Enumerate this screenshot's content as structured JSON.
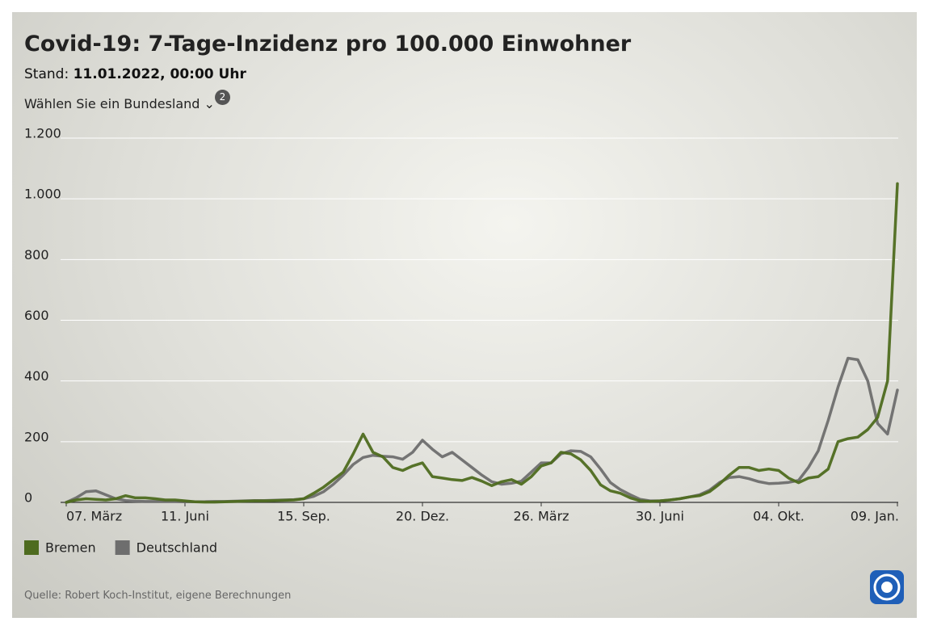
{
  "chart_data": {
    "type": "line",
    "title": "Covid-19: 7-Tage-Inzidenz pro 100.000 Einwohner",
    "subtitle_prefix": "Stand:",
    "subtitle_date": "11.01.2022, 00:00 Uhr",
    "selector": "Wählen Sie ein Bundesland",
    "selector_badge": "2",
    "source": "Quelle: Robert Koch-Institut, eigene Berechnungen",
    "categories": [
      "07. März",
      null,
      null,
      null,
      null,
      null,
      null,
      null,
      null,
      null,
      null,
      null,
      "11. Juni",
      null,
      null,
      null,
      null,
      null,
      null,
      null,
      null,
      null,
      null,
      null,
      "15. Sep.",
      null,
      null,
      null,
      null,
      null,
      null,
      null,
      null,
      null,
      null,
      null,
      "20. Dez.",
      null,
      null,
      null,
      null,
      null,
      null,
      null,
      null,
      null,
      null,
      null,
      "26. März",
      null,
      null,
      null,
      null,
      null,
      null,
      null,
      null,
      null,
      null,
      null,
      "30. Juni",
      null,
      null,
      null,
      null,
      null,
      null,
      null,
      null,
      null,
      null,
      null,
      "04. Okt.",
      null,
      null,
      null,
      null,
      null,
      null,
      null,
      null,
      null,
      null,
      null,
      "09. Jan."
    ],
    "series": [
      {
        "name": "Bremen",
        "color": "#4e6b1f",
        "values": [
          0,
          8,
          12,
          10,
          8,
          12,
          22,
          15,
          15,
          12,
          8,
          8,
          5,
          2,
          1,
          1,
          2,
          3,
          4,
          5,
          5,
          6,
          7,
          8,
          12,
          30,
          50,
          75,
          100,
          160,
          225,
          165,
          150,
          115,
          105,
          120,
          130,
          85,
          80,
          75,
          72,
          82,
          70,
          55,
          68,
          75,
          60,
          85,
          120,
          130,
          165,
          160,
          140,
          105,
          58,
          38,
          30,
          15,
          5,
          3,
          5,
          8,
          12,
          18,
          22,
          35,
          60,
          90,
          115,
          115,
          105,
          110,
          105,
          80,
          65,
          80,
          85,
          110,
          200,
          210,
          215,
          240,
          280,
          400,
          1050
        ]
      },
      {
        "name": "Deutschland",
        "color": "#6e6e6e",
        "values": [
          0,
          15,
          35,
          38,
          25,
          12,
          6,
          4,
          3,
          3,
          3,
          3,
          2,
          2,
          2,
          3,
          3,
          4,
          5,
          6,
          6,
          7,
          8,
          9,
          12,
          20,
          35,
          60,
          90,
          125,
          148,
          155,
          152,
          150,
          142,
          165,
          205,
          175,
          150,
          165,
          140,
          115,
          90,
          68,
          60,
          63,
          70,
          100,
          130,
          130,
          160,
          170,
          168,
          150,
          110,
          65,
          42,
          25,
          10,
          5,
          5,
          8,
          12,
          18,
          25,
          40,
          65,
          82,
          85,
          78,
          68,
          62,
          63,
          66,
          72,
          115,
          170,
          270,
          380,
          475,
          470,
          400,
          260,
          225,
          370
        ]
      }
    ],
    "ylim": [
      0,
      1200
    ],
    "yticks": [
      0,
      200,
      400,
      600,
      800,
      {
        "value": 1000,
        "label": "1.000"
      },
      {
        "value": 1200,
        "label": "1.200"
      }
    ],
    "grid": true
  }
}
